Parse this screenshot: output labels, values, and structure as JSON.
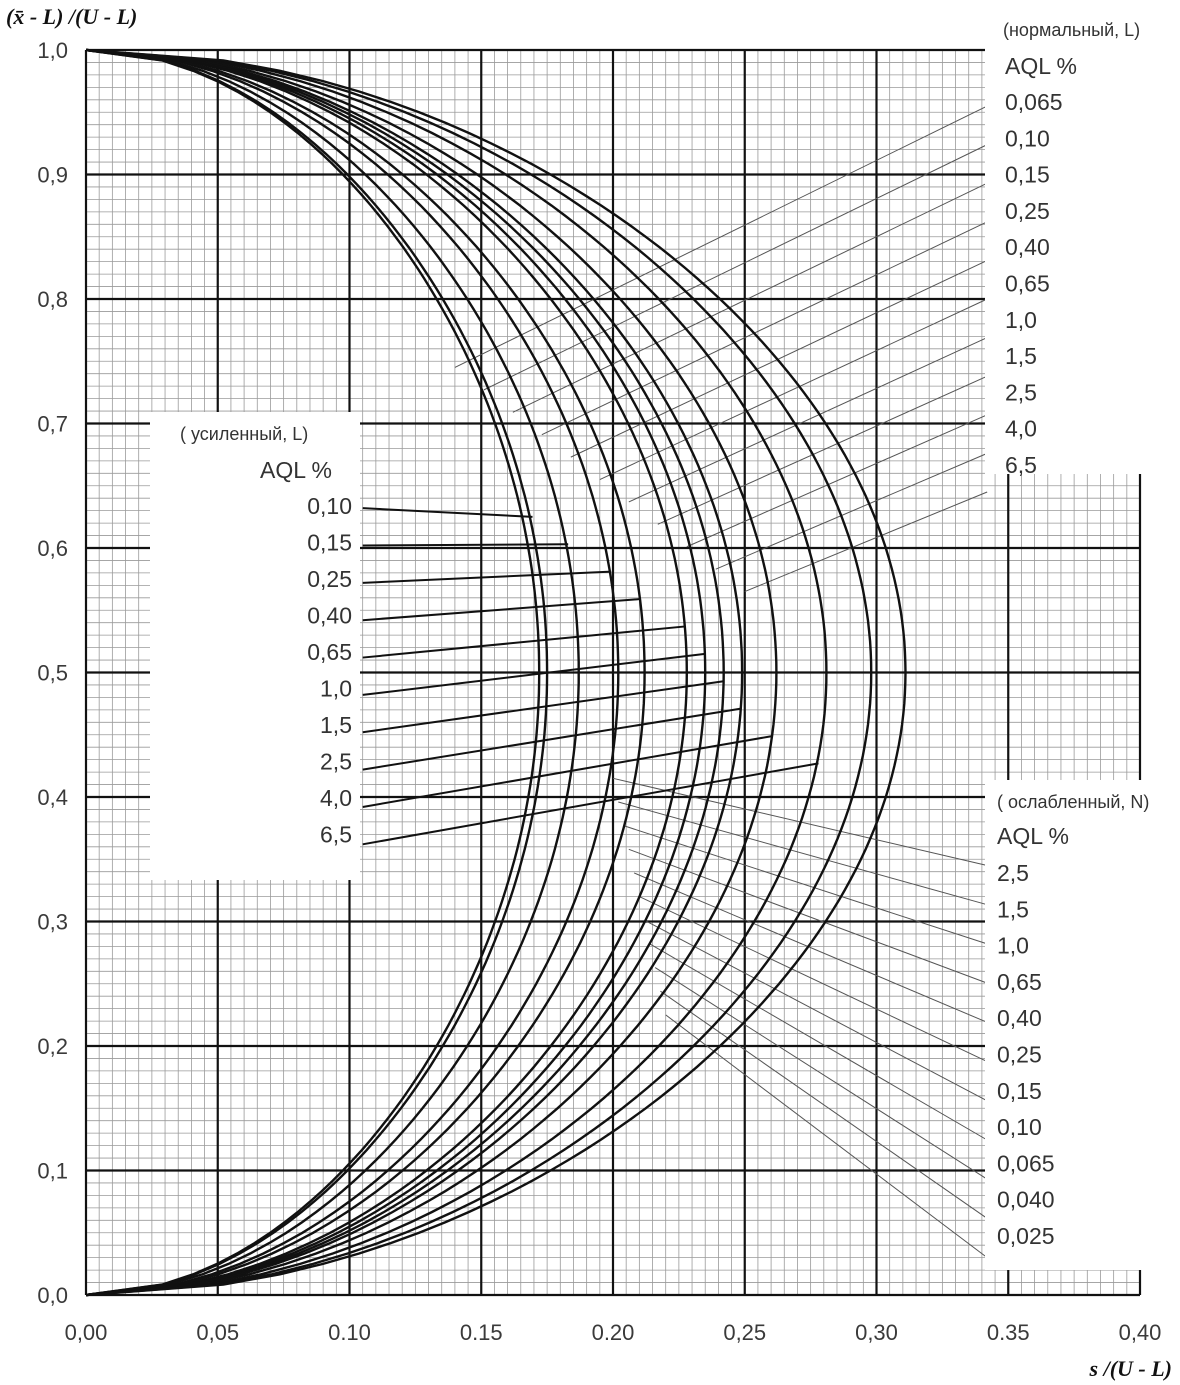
{
  "chart_data": {
    "type": "line",
    "title": "",
    "xlabel": "s /(U - L)",
    "ylabel": "(x̄ - L) /(U - L)",
    "xlim": [
      0,
      0.4
    ],
    "ylim": [
      0,
      1.0
    ],
    "x_ticks": [
      "0,00",
      "0,05",
      "0.10",
      "0.15",
      "0.20",
      "0,25",
      "0,30",
      "0.35",
      "0,40"
    ],
    "y_ticks": [
      "0,0",
      "0,1",
      "0,2",
      "0,3",
      "0,4",
      "0,5",
      "0,6",
      "0,7",
      "0,8",
      "0,9",
      "1,0"
    ],
    "grid": true,
    "curve_peaks_s": [
      0.172,
      0.175,
      0.187,
      0.202,
      0.212,
      0.228,
      0.235,
      0.242,
      0.249,
      0.262,
      0.281,
      0.298,
      0.311
    ],
    "normal_label": {
      "header": "(нормальный, L)",
      "aql": "AQL %",
      "levels": [
        "0,065",
        "0,10",
        "0,15",
        "0,25",
        "0,40",
        "0,65",
        "1,0",
        "1,5",
        "2,5",
        "4,0",
        "6,5"
      ]
    },
    "tightened_label": {
      "header": "( усиленный,   L)",
      "aql": "AQL %",
      "levels": [
        "0,10",
        "0,15",
        "0,25",
        "0,40",
        "0,65",
        "1,0",
        "1,5",
        "2,5",
        "4,0",
        "6,5"
      ]
    },
    "reduced_label": {
      "header": "( ослабленный,  N)",
      "aql": "AQL %",
      "levels": [
        "2,5",
        "1,5",
        "1,0",
        "0,65",
        "0,40",
        "0,25",
        "0,15",
        "0,10",
        "0,065",
        "0,040",
        "0,025"
      ]
    }
  }
}
